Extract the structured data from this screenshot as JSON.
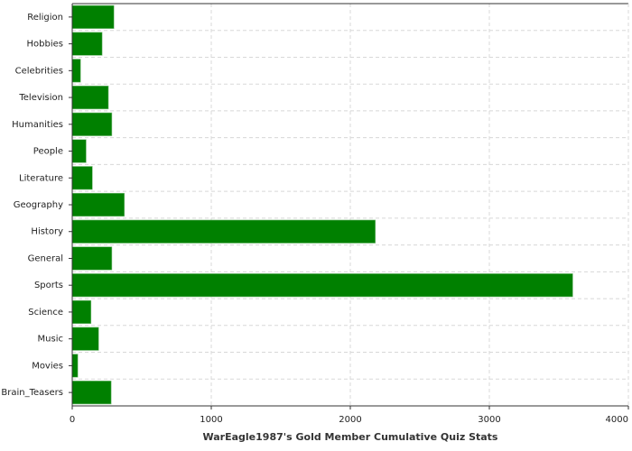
{
  "chart_data": {
    "type": "hbar",
    "xlabel": "WarEagle1987's Gold Member Cumulative Quiz Stats",
    "categories": [
      "Religion",
      "Hobbies",
      "Celebrities",
      "Television",
      "Humanities",
      "People",
      "Literature",
      "Geography",
      "History",
      "General",
      "Sports",
      "Science",
      "Music",
      "Movies",
      "Brain_Teasers"
    ],
    "values": [
      300,
      215,
      60,
      260,
      285,
      100,
      145,
      375,
      2180,
      285,
      3600,
      135,
      190,
      40,
      280
    ],
    "color": "#008000",
    "xlim": [
      0,
      4000
    ],
    "xticks": [
      0,
      1000,
      2000,
      3000,
      4000
    ],
    "grid": true
  }
}
